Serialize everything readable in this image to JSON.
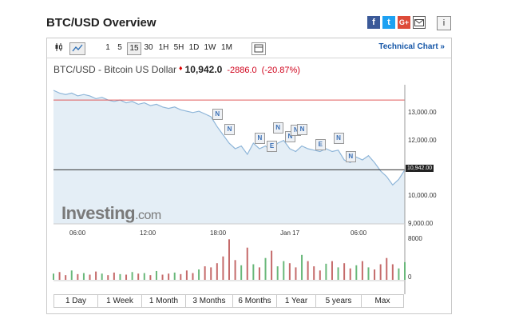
{
  "title": "BTC/USD Overview",
  "share": {
    "facebook": "f",
    "twitter": "t",
    "google": "G+",
    "info": "i"
  },
  "toolbar": {
    "intervals": [
      "1",
      "5",
      "15",
      "30",
      "1H",
      "5H",
      "1D",
      "1W",
      "1M"
    ],
    "selected": "15",
    "technical": "Technical Chart »"
  },
  "quote": {
    "name": "BTC/USD - Bitcoin US Dollar",
    "price": "10,942.0",
    "change": "-2886.0",
    "change_pct": "(-20.87%)"
  },
  "colors": {
    "down": "#d0021b",
    "line": "#8fb6d9",
    "area": "#e4eef6",
    "ref": "#e05a5a"
  },
  "chart_data": {
    "type": "area",
    "x_ticks": [
      "06:00",
      "12:00",
      "18:00",
      "Jan 17",
      "06:00"
    ],
    "y_ticks": [
      "13,000.00",
      "12,000.00",
      "11,000.00",
      "10,000.00",
      "9,000.00"
    ],
    "volume_ticks": [
      "8000",
      "0"
    ],
    "current_label": "10,942.00",
    "reference_level": 13450,
    "current_level": 10942,
    "ylim": [
      9000,
      14000
    ],
    "price": [
      13800,
      13700,
      13650,
      13700,
      13600,
      13650,
      13600,
      13500,
      13550,
      13450,
      13400,
      13450,
      13350,
      13400,
      13300,
      13350,
      13250,
      13300,
      13200,
      13150,
      13200,
      13100,
      13050,
      13000,
      13050,
      12950,
      12850,
      12500,
      12200,
      11900,
      11700,
      11800,
      11500,
      11900,
      11700,
      11800,
      11600,
      11900,
      12000,
      11700,
      11600,
      11800,
      11700,
      11650,
      11600,
      11700,
      11600,
      11650,
      11300,
      11200,
      11400,
      11300,
      11450,
      11200,
      10900,
      10700,
      10400,
      10600,
      10942
    ],
    "volume": [
      1200,
      1500,
      900,
      1800,
      1100,
      1300,
      1000,
      1600,
      1200,
      900,
      1400,
      1100,
      1000,
      1500,
      1200,
      1300,
      900,
      1700,
      1000,
      1200,
      1400,
      1100,
      1800,
      1300,
      2000,
      2600,
      2400,
      3200,
      4500,
      7800,
      3800,
      2800,
      6200,
      3000,
      2400,
      4200,
      5600,
      2600,
      3600,
      3200,
      2400,
      4800,
      3600,
      2600,
      1800,
      3100,
      3600,
      2400,
      3200,
      2200,
      2800,
      3600,
      2400,
      2000,
      3000,
      4200,
      3000,
      2200,
      3400
    ],
    "news_markers": [
      "N",
      "N",
      "N",
      "E",
      "N",
      "N",
      "N",
      "N",
      "E",
      "N",
      "N"
    ]
  },
  "ranges": [
    "1 Day",
    "1 Week",
    "1 Month",
    "3 Months",
    "6 Months",
    "1 Year",
    "5 years",
    "Max"
  ],
  "logo": {
    "brand": "Investing",
    "suffix": ".com"
  }
}
